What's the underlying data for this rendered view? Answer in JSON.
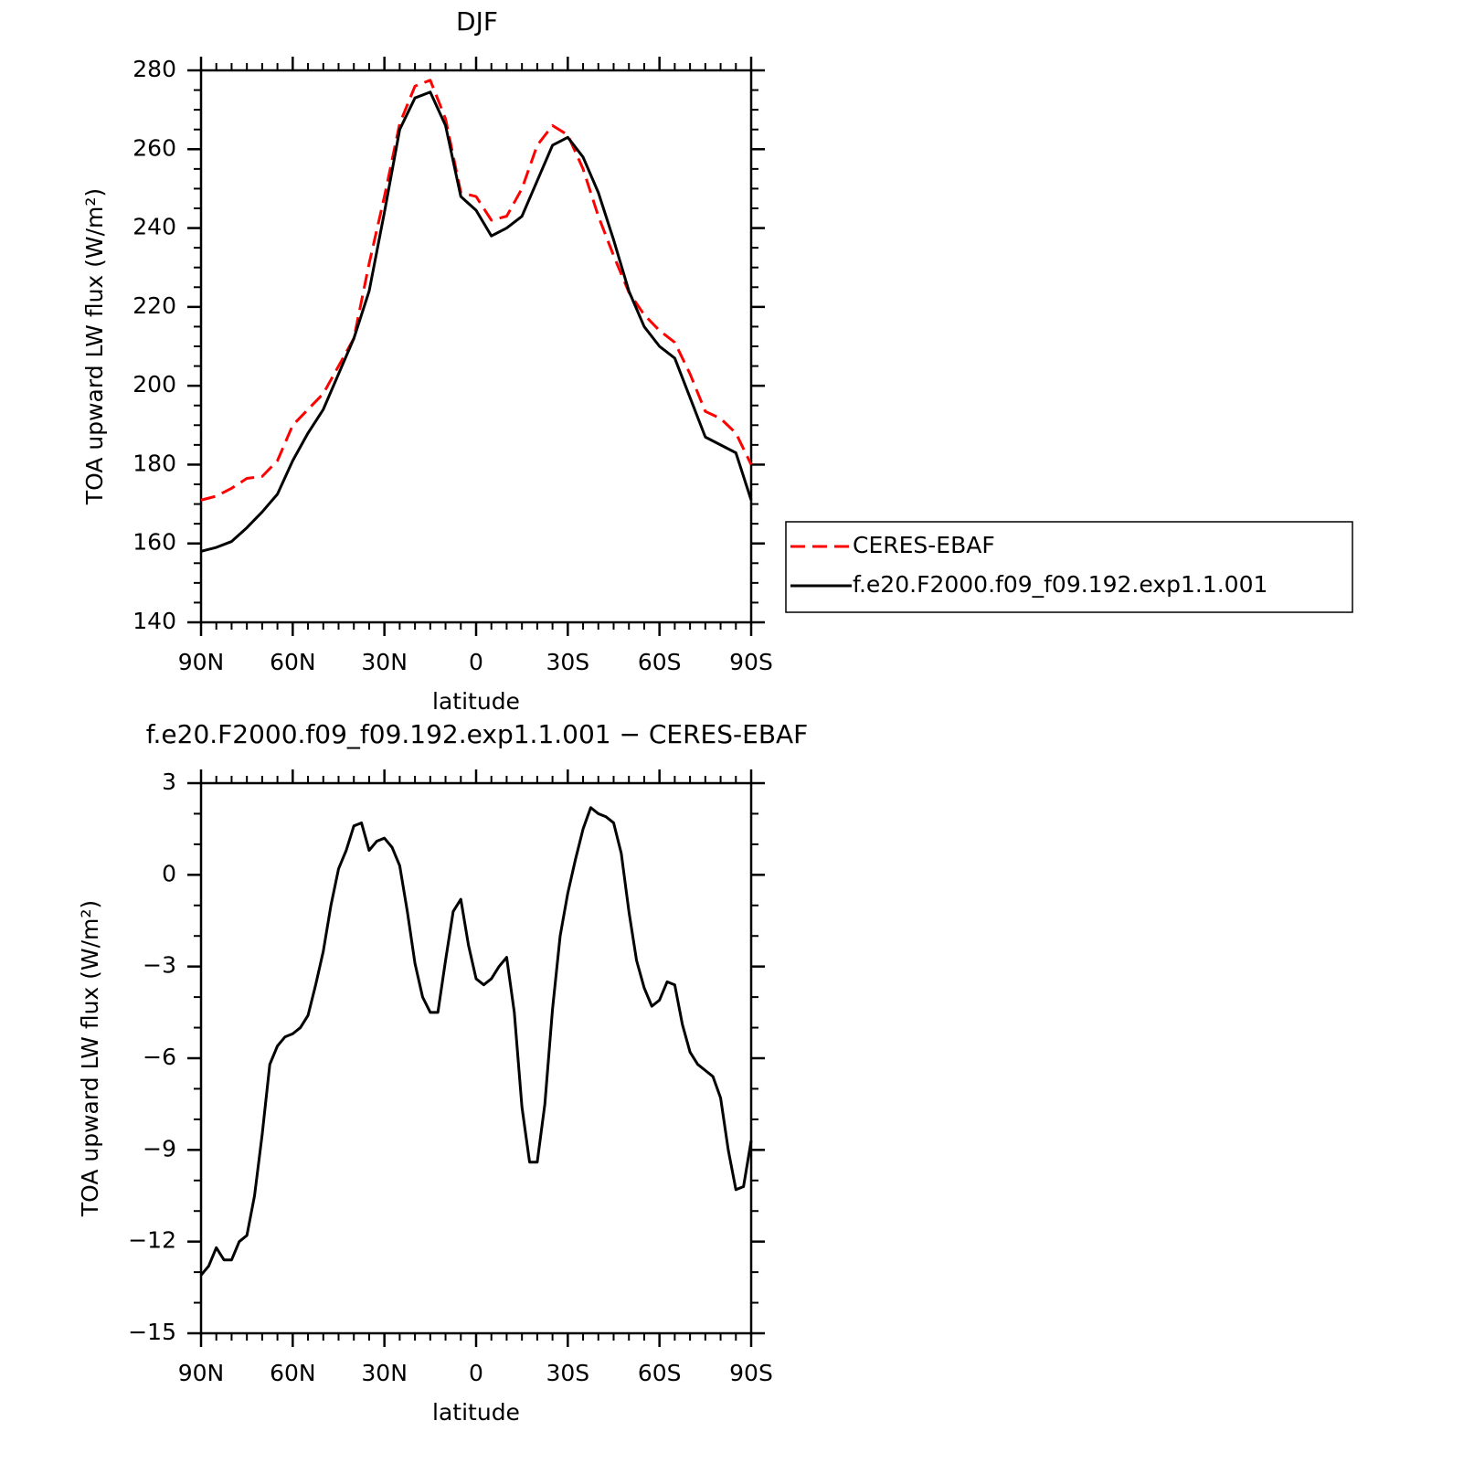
{
  "chart_data": [
    {
      "type": "line",
      "title": "DJF",
      "xlabel": "latitude",
      "ylabel": "TOA upward LW flux (W/m²)",
      "x": [
        90,
        85,
        80,
        75,
        70,
        65,
        60,
        55,
        50,
        45,
        40,
        35,
        30,
        25,
        20,
        15,
        10,
        5,
        0,
        -5,
        -10,
        -15,
        -20,
        -25,
        -30,
        -35,
        -40,
        -45,
        -50,
        -55,
        -60,
        -65,
        -70,
        -75,
        -80,
        -85,
        -90
      ],
      "series": [
        {
          "name": "CERES-EBAF",
          "color": "#ff0000",
          "dash": "dashed",
          "values": [
            171,
            172,
            174,
            176.5,
            177,
            181,
            190,
            194,
            198,
            205,
            212,
            231,
            248,
            266.5,
            276,
            277.5,
            267.7,
            249,
            248,
            242,
            243,
            250,
            261,
            266,
            263.6,
            255,
            243,
            233,
            223.7,
            218,
            214,
            211,
            203,
            193.5,
            191.7,
            188,
            180
          ]
        },
        {
          "name": "f.e20.F2000.f09_f09.192.exp1.1.001",
          "color": "#000000",
          "dash": "solid",
          "values": [
            158,
            159,
            160.5,
            164,
            168,
            172.5,
            181,
            188,
            194,
            203,
            212,
            224,
            244,
            265,
            273,
            274.5,
            266,
            248,
            244.5,
            238,
            240,
            243,
            252,
            261,
            263,
            258,
            249,
            237,
            224,
            215,
            210,
            207,
            197,
            187,
            185,
            183,
            171
          ]
        }
      ],
      "xlim": [
        90,
        -90
      ],
      "xticks": [
        {
          "value": 90,
          "label": "90N"
        },
        {
          "value": 60,
          "label": "60N"
        },
        {
          "value": 30,
          "label": "30N"
        },
        0,
        {
          "value": -30,
          "label": "30S"
        },
        {
          "value": -60,
          "label": "60S"
        },
        {
          "value": -90,
          "label": "90S"
        }
      ],
      "ylim": [
        140,
        280
      ],
      "yticks": [
        140,
        160,
        180,
        200,
        220,
        240,
        260,
        280
      ],
      "legend": "right"
    },
    {
      "type": "line",
      "title": "f.e20.F2000.f09_f09.192.exp1.1.001 − CERES-EBAF",
      "xlabel": "latitude",
      "ylabel": "TOA upward LW flux (W/m²)",
      "x": [
        90,
        87.5,
        85,
        82.5,
        80,
        77.5,
        75,
        72.5,
        70,
        67.5,
        65,
        62.5,
        60,
        57.5,
        55,
        52.5,
        50,
        47.5,
        45,
        42.5,
        40,
        37.5,
        35,
        32.5,
        30,
        27.5,
        25,
        22.5,
        20,
        17.5,
        15,
        12.5,
        10,
        7.5,
        5,
        2.5,
        0,
        -2.5,
        -5,
        -7.5,
        -10,
        -12.5,
        -15,
        -17.5,
        -20,
        -22.5,
        -25,
        -27.5,
        -30,
        -32.5,
        -35,
        -37.5,
        -40,
        -42.5,
        -45,
        -47.5,
        -50,
        -52.5,
        -55,
        -57.5,
        -60,
        -62.5,
        -65,
        -67.5,
        -70,
        -72.5,
        -75,
        -77.5,
        -80,
        -82.5,
        -85,
        -87.5,
        -90
      ],
      "series": [
        {
          "color": "#000000",
          "dash": "solid",
          "values": [
            -13.1,
            -12.8,
            -12.2,
            -12.6,
            -12.6,
            -12.0,
            -11.8,
            -10.5,
            -8.5,
            -6.2,
            -5.6,
            -5.3,
            -5.2,
            -5.0,
            -4.6,
            -3.6,
            -2.5,
            -1.0,
            0.2,
            0.8,
            1.6,
            1.7,
            0.8,
            1.1,
            1.2,
            0.9,
            0.3,
            -1.2,
            -2.9,
            -4.0,
            -4.5,
            -4.5,
            -2.8,
            -1.2,
            -0.8,
            -2.3,
            -3.4,
            -3.6,
            -3.4,
            -3.0,
            -2.7,
            -4.5,
            -7.6,
            -9.4,
            -9.4,
            -7.5,
            -4.4,
            -2.0,
            -0.6,
            0.5,
            1.5,
            2.2,
            2.0,
            1.9,
            1.7,
            0.7,
            -1.2,
            -2.8,
            -3.7,
            -4.3,
            -4.1,
            -3.5,
            -3.6,
            -4.9,
            -5.8,
            -6.2,
            -6.4,
            -6.6,
            -7.3,
            -9.0,
            -10.3,
            -10.2,
            -8.7
          ]
        }
      ],
      "xlim": [
        90,
        -90
      ],
      "xticks": [
        {
          "value": 90,
          "label": "90N"
        },
        {
          "value": 60,
          "label": "60N"
        },
        {
          "value": 30,
          "label": "30N"
        },
        0,
        {
          "value": -30,
          "label": "30S"
        },
        {
          "value": -60,
          "label": "60S"
        },
        {
          "value": -90,
          "label": "90S"
        }
      ],
      "ylim": [
        -15,
        3
      ],
      "yticks": [
        {
          "value": -15,
          "label": "−15"
        },
        {
          "value": -12,
          "label": "−12"
        },
        {
          "value": -9,
          "label": "−9"
        },
        {
          "value": -6,
          "label": "−6"
        },
        {
          "value": -3,
          "label": "−3"
        },
        0,
        3
      ]
    }
  ]
}
